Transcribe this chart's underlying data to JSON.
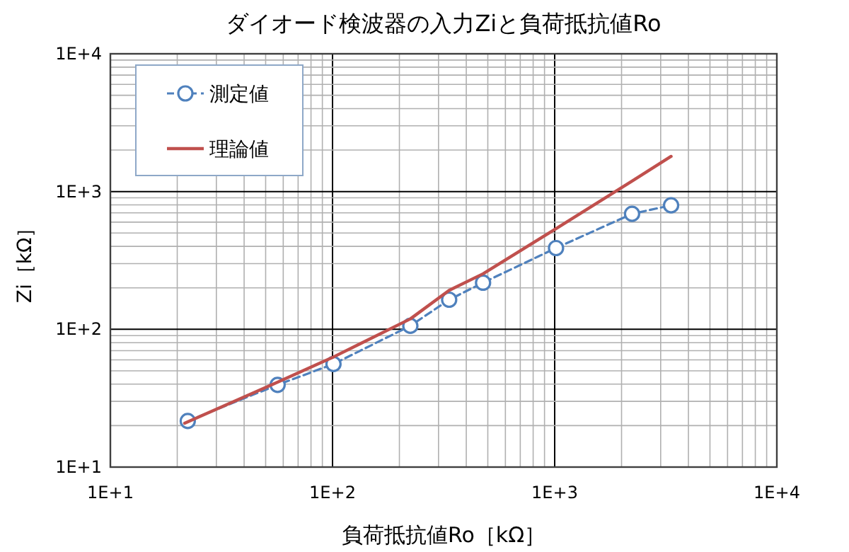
{
  "chart_data": {
    "type": "line",
    "title": "ダイオード検波器の入力Ziと負荷抵抗値Ro",
    "xlabel": "負荷抵抗値Ro［kΩ］",
    "ylabel": "Zi［kΩ］",
    "log": "xy",
    "grid": true,
    "legend": "top left",
    "xlim": [
      10,
      10000
    ],
    "ylim": [
      10,
      10000
    ],
    "xticks": [
      {
        "value": 10,
        "label": "1E+1"
      },
      {
        "value": 100,
        "label": "1E+2"
      },
      {
        "value": 1000,
        "label": "1E+3"
      },
      {
        "value": 10000,
        "label": "1E+4"
      }
    ],
    "yticks": [
      {
        "value": 10,
        "label": "1E+1"
      },
      {
        "value": 100,
        "label": "1E+2"
      },
      {
        "value": 1000,
        "label": "1E+3"
      },
      {
        "value": 10000,
        "label": "1E+4"
      }
    ],
    "series": [
      {
        "name": "測定値",
        "color": "#4f81bd",
        "marker": "circle",
        "line_style": "dashed",
        "x": [
          22.3,
          56.6,
          101,
          224,
          335,
          476,
          1014,
          2230,
          3342
        ],
        "values": [
          21.6,
          39.5,
          56,
          106,
          164,
          218,
          389,
          689,
          794
        ]
      },
      {
        "name": "理論値",
        "color": "#c0504d",
        "marker": "none",
        "line_style": "solid",
        "x": [
          21.6,
          56.6,
          101,
          224,
          335,
          476,
          1014,
          2230,
          3342
        ],
        "values": [
          20.8,
          41.4,
          63,
          119,
          192,
          253,
          538,
          1191,
          1800
        ]
      }
    ]
  }
}
